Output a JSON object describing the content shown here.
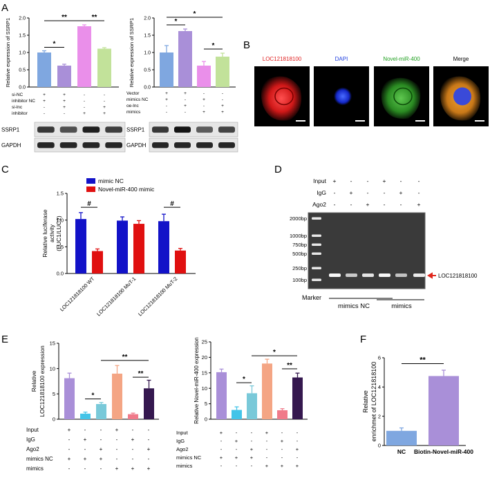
{
  "panels": {
    "A": "A",
    "B": "B",
    "C": "C",
    "D": "D",
    "E": "E",
    "F": "F"
  },
  "colors": {
    "blue": "#7fa7e0",
    "purple": "#a98fd8",
    "pink": "#ea8fea",
    "green": "#c2e29a",
    "navy": "#1212c8",
    "red": "#e01010",
    "cyan": "#43c4e8",
    "teal": "#79c9d9",
    "salmon": "#f4a584",
    "pinkred": "#f07a8a",
    "darkpurple": "#35184f",
    "arrow": "#e0261c"
  },
  "chart_data": [
    {
      "id": "A1",
      "type": "bar",
      "ylabel": "Relative expression of SSRP1",
      "ylim": [
        0,
        2.0
      ],
      "yticks": [
        "0.0",
        "0.5",
        "1.0",
        "1.5",
        "2.0"
      ],
      "values": [
        1.0,
        0.62,
        1.76,
        1.11
      ],
      "errors": [
        0.05,
        0.04,
        0.04,
        0.03
      ],
      "sig": [
        {
          "label": "*"
        },
        {
          "label": "**"
        },
        {
          "label": "**"
        }
      ],
      "rows": [
        {
          "label": "si-NC",
          "signs": [
            "+",
            "+",
            "-",
            "-"
          ]
        },
        {
          "label": "inhibitor NC",
          "signs": [
            "+",
            "+",
            "-",
            "-"
          ]
        },
        {
          "label": "si-lnc",
          "signs": [
            "-",
            "+",
            "-",
            "+"
          ]
        },
        {
          "label": "inhibitor",
          "signs": [
            "-",
            "-",
            "+",
            "+"
          ]
        }
      ],
      "blots": [
        "SSRP1",
        "GAPDH"
      ]
    },
    {
      "id": "A2",
      "type": "bar",
      "ylabel": "Relative expression of SSRP1",
      "ylim": [
        0,
        2.0
      ],
      "yticks": [
        "0.0",
        "0.5",
        "1.0",
        "1.5",
        "2.0"
      ],
      "values": [
        1.0,
        1.62,
        0.62,
        0.88
      ],
      "errors": [
        0.2,
        0.06,
        0.12,
        0.1
      ],
      "sig": [
        {
          "label": "*"
        },
        {
          "label": "*"
        },
        {
          "label": "*"
        }
      ],
      "rows": [
        {
          "label": "Vector",
          "signs": [
            "+",
            "+",
            "-",
            "-"
          ]
        },
        {
          "label": "mimics NC",
          "signs": [
            "+",
            "-",
            "+",
            "-"
          ]
        },
        {
          "label": "oe-lnc",
          "signs": [
            "-",
            "+",
            "-",
            "+"
          ]
        },
        {
          "label": "mimics",
          "signs": [
            "-",
            "-",
            "+",
            "+"
          ]
        }
      ],
      "blots": [
        "SSRP1",
        "GAPDH"
      ]
    },
    {
      "id": "C",
      "type": "bar",
      "ylabel": "Relative luciferase activity (LUC1/LUC2)",
      "ylim": [
        0,
        1.5
      ],
      "yticks": [
        "0.0",
        "0.5",
        "1.0",
        "1.5"
      ],
      "categories": [
        "LOC121818100 WT",
        "LOC121818100 MuT-1",
        "LOC121818100 MuT-2"
      ],
      "series": [
        {
          "name": "mimic NC",
          "values": [
            1.02,
            0.99,
            0.98
          ],
          "errors": [
            0.12,
            0.07,
            0.13
          ]
        },
        {
          "name": "Novel-miR-400 mimic",
          "values": [
            0.42,
            0.93,
            0.43
          ],
          "errors": [
            0.04,
            0.06,
            0.04
          ]
        }
      ],
      "sig": [
        {
          "label": "#"
        },
        {
          "label": "#"
        }
      ]
    },
    {
      "id": "E1",
      "type": "bar",
      "ylabel": "Relative LOC121818100 expression",
      "ylim": [
        0,
        15
      ],
      "yticks": [
        "0",
        "5",
        "10",
        "15"
      ],
      "values": [
        8.1,
        1.1,
        3.0,
        9.0,
        1.0,
        6.1
      ],
      "errors": [
        1.0,
        0.3,
        0.3,
        1.6,
        0.2,
        1.6
      ],
      "sig": [
        {
          "label": "*"
        },
        {
          "label": "**"
        },
        {
          "label": "**"
        }
      ],
      "rows": [
        {
          "label": "Input",
          "signs": [
            "+",
            "-",
            "-",
            "+",
            "-",
            "-"
          ]
        },
        {
          "label": "IgG",
          "signs": [
            "-",
            "+",
            "-",
            "-",
            "+",
            "-"
          ]
        },
        {
          "label": "Ago2",
          "signs": [
            "-",
            "-",
            "+",
            "-",
            "-",
            "+"
          ]
        },
        {
          "label": "mimics NC",
          "signs": [
            "+",
            "+",
            "+",
            "-",
            "-",
            "-"
          ]
        },
        {
          "label": "mimics",
          "signs": [
            "-",
            "-",
            "-",
            "+",
            "+",
            "+"
          ]
        }
      ]
    },
    {
      "id": "E2",
      "type": "bar",
      "ylabel": "Relative Novel-miR-400 expression",
      "ylim": [
        0,
        25
      ],
      "yticks": [
        "0",
        "5",
        "10",
        "15",
        "20",
        "25"
      ],
      "values": [
        15.2,
        3.0,
        8.4,
        18.0,
        2.9,
        13.5
      ],
      "errors": [
        1.0,
        1.0,
        2.4,
        1.4,
        0.5,
        1.4
      ],
      "sig": [
        {
          "label": "*"
        },
        {
          "label": "*"
        },
        {
          "label": "**"
        }
      ],
      "rows": [
        {
          "label": "Input",
          "signs": [
            "+",
            "-",
            "-",
            "+",
            "-",
            "-"
          ]
        },
        {
          "label": "IgG",
          "signs": [
            "-",
            "+",
            "-",
            "-",
            "+",
            "-"
          ]
        },
        {
          "label": "Ago2",
          "signs": [
            "-",
            "-",
            "+",
            "-",
            "-",
            "+"
          ]
        },
        {
          "label": "mimics NC",
          "signs": [
            "+",
            "+",
            "+",
            "-",
            "-",
            "-"
          ]
        },
        {
          "label": "mimics",
          "signs": [
            "-",
            "-",
            "-",
            "+",
            "+",
            "+"
          ]
        }
      ]
    },
    {
      "id": "F",
      "type": "bar",
      "ylabel": "Relative enrichmet of LOC121818100",
      "ylim": [
        0,
        6
      ],
      "yticks": [
        "0",
        "2",
        "4",
        "6"
      ],
      "categories": [
        "NC",
        "Biotin-Novel-miR-400"
      ],
      "values": [
        1.0,
        4.75
      ],
      "errors": [
        0.2,
        0.4
      ],
      "sig": [
        {
          "label": "**"
        }
      ]
    }
  ],
  "panelB": {
    "labels": [
      "LOC121818100",
      "DAPI",
      "Novel-miR-400",
      "Merge"
    ]
  },
  "panelD": {
    "rows": [
      {
        "label": "Input",
        "signs": [
          "+",
          "-",
          "-",
          "+",
          "-",
          "-"
        ]
      },
      {
        "label": "IgG",
        "signs": [
          "-",
          "+",
          "-",
          "-",
          "+",
          "-"
        ]
      },
      {
        "label": "Ago2",
        "signs": [
          "-",
          "-",
          "+",
          "-",
          "-",
          "+"
        ]
      }
    ],
    "markers": [
      "2000bp",
      "1000bp",
      "750bp",
      "500bp",
      "250bp",
      "100bp"
    ],
    "band_label": "LOC121818100",
    "marker_label": "Marker",
    "groups": [
      "mimics NC",
      "mimics"
    ]
  }
}
